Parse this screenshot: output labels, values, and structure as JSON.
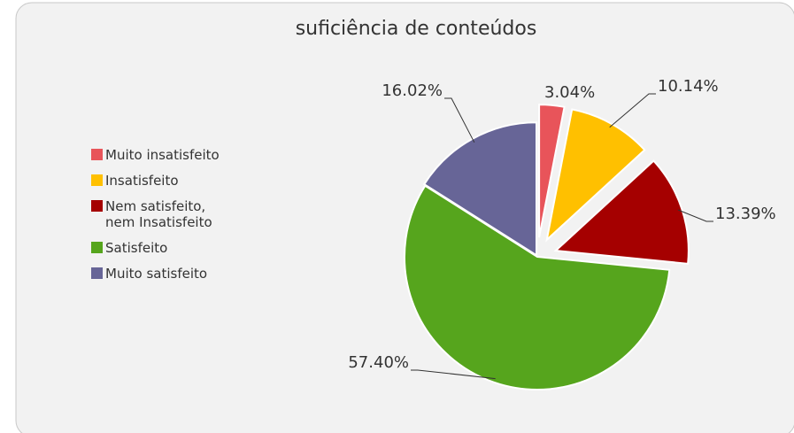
{
  "chart_data": {
    "type": "pie",
    "title": "suficiência de conteúdos",
    "categories": [
      "Muito insatisfeito",
      "Insatisfeito",
      "Nem satisfeito, nem Insatisfeito",
      "Satisfeito",
      "Muito satisfeito"
    ],
    "values": [
      3.04,
      10.14,
      13.39,
      57.4,
      16.02
    ],
    "value_labels": [
      "3.04%",
      "10.14%",
      "13.39%",
      "57.40%",
      "16.02%"
    ],
    "colors": [
      "#e8545a",
      "#ffc000",
      "#a50000",
      "#56a51d",
      "#676597"
    ],
    "legend": "left"
  }
}
